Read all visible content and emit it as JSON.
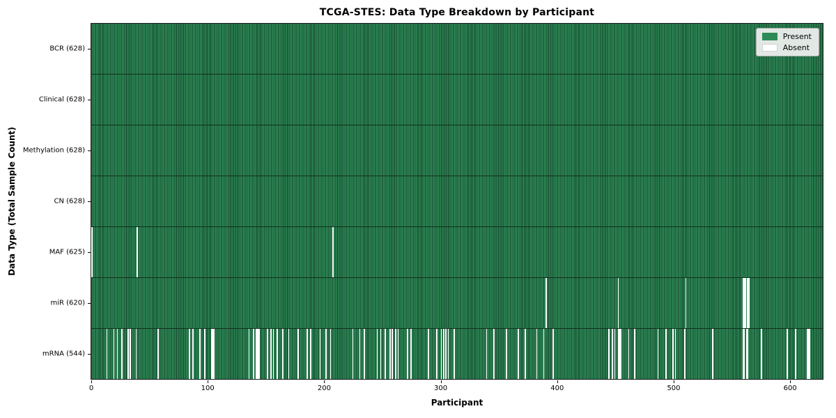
{
  "colors": {
    "present": "#2e8b57",
    "present_edge": "#133f28",
    "absent": "#ffffff",
    "row_divider": "#112f1d",
    "spine": "#1a1a1a",
    "legend_bg": "rgba(242,242,242,0.92)",
    "legend_border": "#a8a8a8"
  },
  "chart_data": {
    "type": "heatmap",
    "title": "TCGA-STES: Data Type Breakdown by Participant",
    "xlabel": "Participant",
    "ylabel": "Data Type (Total Sample Count)",
    "n_participants": 628,
    "x_ticks": [
      0,
      100,
      200,
      300,
      400,
      500,
      600
    ],
    "legend_position": "upper right",
    "grid": false,
    "legend": [
      {
        "label": "Present",
        "color": "#2e8b57"
      },
      {
        "label": "Absent",
        "color": "#ffffff"
      }
    ],
    "rows": [
      {
        "name": "BCR",
        "label": "BCR (628)",
        "present_count": 628,
        "absent_participants": []
      },
      {
        "name": "Clinical",
        "label": "Clinical (628)",
        "present_count": 628,
        "absent_participants": []
      },
      {
        "name": "Methylation",
        "label": "Methylation (628)",
        "present_count": 628,
        "absent_participants": []
      },
      {
        "name": "CN",
        "label": "CN (628)",
        "present_count": 628,
        "absent_participants": []
      },
      {
        "name": "MAF",
        "label": "MAF (625)",
        "present_count": 625,
        "absent_participants": [
          0,
          39,
          207
        ]
      },
      {
        "name": "miR",
        "label": "miR (620)",
        "present_count": 620,
        "absent_participants": [
          390,
          452,
          510,
          559,
          560,
          561,
          563,
          564
        ]
      },
      {
        "name": "mRNA",
        "label": "mRNA (544)",
        "present_count": 544,
        "absent_participants": [
          13,
          19,
          22,
          26,
          31,
          33,
          38,
          57,
          84,
          87,
          93,
          97,
          103,
          104,
          105,
          135,
          139,
          141,
          142,
          143,
          144,
          151,
          154,
          156,
          159,
          164,
          169,
          177,
          185,
          188,
          196,
          201,
          205,
          224,
          230,
          234,
          245,
          248,
          252,
          256,
          258,
          261,
          263,
          271,
          274,
          289,
          296,
          300,
          302,
          304,
          306,
          311,
          339,
          345,
          356,
          366,
          372,
          382,
          388,
          396,
          444,
          447,
          449,
          452,
          453,
          454,
          461,
          466,
          486,
          493,
          499,
          501,
          509,
          533,
          559,
          560,
          562,
          563,
          575,
          597,
          604,
          614,
          615,
          616
        ]
      }
    ]
  }
}
